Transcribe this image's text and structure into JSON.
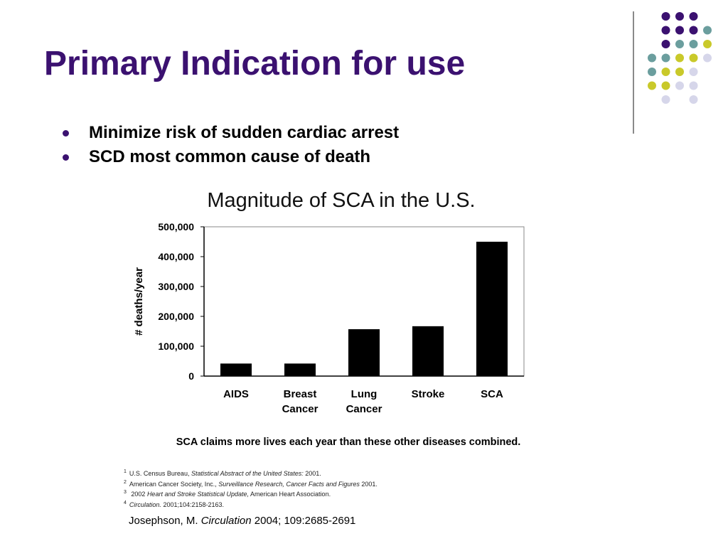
{
  "slide": {
    "title": "Primary Indication for use",
    "bullets": [
      "Minimize risk of sudden cardiac arrest",
      "SCD most common cause of death"
    ]
  },
  "decor": {
    "dot_colors": [
      "#3b1170",
      "#6b9e9e",
      "#c9c92a",
      "#d6d6ea"
    ]
  },
  "chart_data": {
    "type": "bar",
    "title": "Magnitude of SCA in the U.S.",
    "ylabel": "# deaths/year",
    "xlabel": "",
    "categories": [
      [
        "AIDS"
      ],
      [
        "Breast",
        "Cancer"
      ],
      [
        "Lung",
        "Cancer"
      ],
      [
        "Stroke"
      ],
      [
        "SCA"
      ]
    ],
    "values": [
      42000,
      42000,
      157000,
      167000,
      450000
    ],
    "ylim": [
      0,
      500000
    ],
    "yticks": [
      "0",
      "100,000",
      "200,000",
      "300,000",
      "400,000",
      "500,000"
    ],
    "grid": false,
    "caption": "SCA claims more lives each year than these other diseases combined.",
    "bar_color": "#000000"
  },
  "footnotes": [
    {
      "mark": "1",
      "text": "U.S. Census Bureau, ",
      "italic": "Statistical Abstract of the United States:",
      "rest": " 2001."
    },
    {
      "mark": "2",
      "text": "American Cancer Society, Inc., ",
      "italic": "Surveillance Research, Cancer Facts and Figures",
      "rest": " 2001."
    },
    {
      "mark": "3",
      "text": " 2002 ",
      "italic": "Heart and Stroke Statistical Update,",
      "rest": " American Heart Association."
    },
    {
      "mark": "4",
      "text": "",
      "italic": "Circulation.",
      "rest": " 2001;104:2158-2163."
    }
  ],
  "citation": {
    "author": "Josephson, M. ",
    "journal": "Circulation",
    "details": " 2004; 109:2685-2691"
  }
}
